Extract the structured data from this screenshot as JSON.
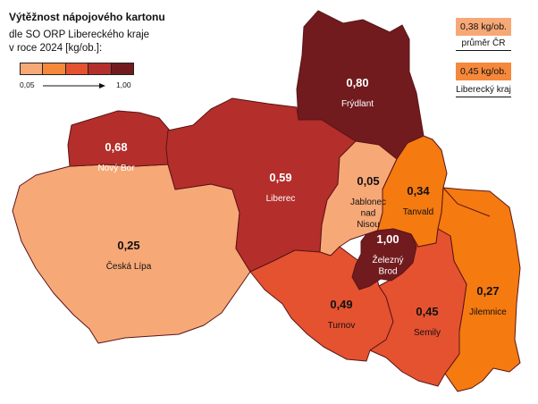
{
  "title": "Výtěžnost nápojového kartonu",
  "subtitle_line1": "dle SO ORP Libereckého kraje",
  "subtitle_line2": "v roce 2024 [kg/ob.]:",
  "legend": {
    "min": "0,05",
    "max": "1,00",
    "colors": [
      "#f7a877",
      "#f5883a",
      "#e55230",
      "#b42e2b",
      "#711b1e"
    ]
  },
  "reference": {
    "cr_value": "0,38 kg/ob.",
    "cr_label": "průměr ČR",
    "cr_color": "#f7a877",
    "kraj_value": "0,45 kg/ob.",
    "kraj_label": "Liberecký kraj",
    "kraj_color": "#f5883a"
  },
  "regions": [
    {
      "id": "frydlant",
      "name": "Frýdlant",
      "value": "0,80",
      "color": "#711b1e",
      "text_color": "#ffffff"
    },
    {
      "id": "novy-bor",
      "name": "Nový Bor",
      "value": "0,68",
      "color": "#b42e2b",
      "text_color": "#ffffff"
    },
    {
      "id": "liberec",
      "name": "Liberec",
      "value": "0,59",
      "color": "#b42e2b",
      "text_color": "#ffffff"
    },
    {
      "id": "jablonec",
      "name_lines": [
        "Jablonec",
        "nad",
        "Nisou"
      ],
      "value": "0,05",
      "color": "#f7a877",
      "text_color": "#111111"
    },
    {
      "id": "tanvald",
      "name": "Tanvald",
      "value": "0,34",
      "color": "#f57a10",
      "text_color": "#111111"
    },
    {
      "id": "ceska-lipa",
      "name": "Česká Lípa",
      "value": "0,25",
      "color": "#f7a877",
      "text_color": "#111111"
    },
    {
      "id": "zelezny-brod",
      "name_lines": [
        "Železný",
        "Brod"
      ],
      "value": "1,00",
      "color": "#711b1e",
      "text_color": "#ffffff"
    },
    {
      "id": "turnov",
      "name": "Turnov",
      "value": "0,49",
      "color": "#e55230",
      "text_color": "#111111"
    },
    {
      "id": "semily",
      "name": "Semily",
      "value": "0,45",
      "color": "#e55230",
      "text_color": "#111111"
    },
    {
      "id": "jilemnice",
      "name": "Jilemnice",
      "value": "0,27",
      "color": "#f57a10",
      "text_color": "#111111"
    }
  ]
}
